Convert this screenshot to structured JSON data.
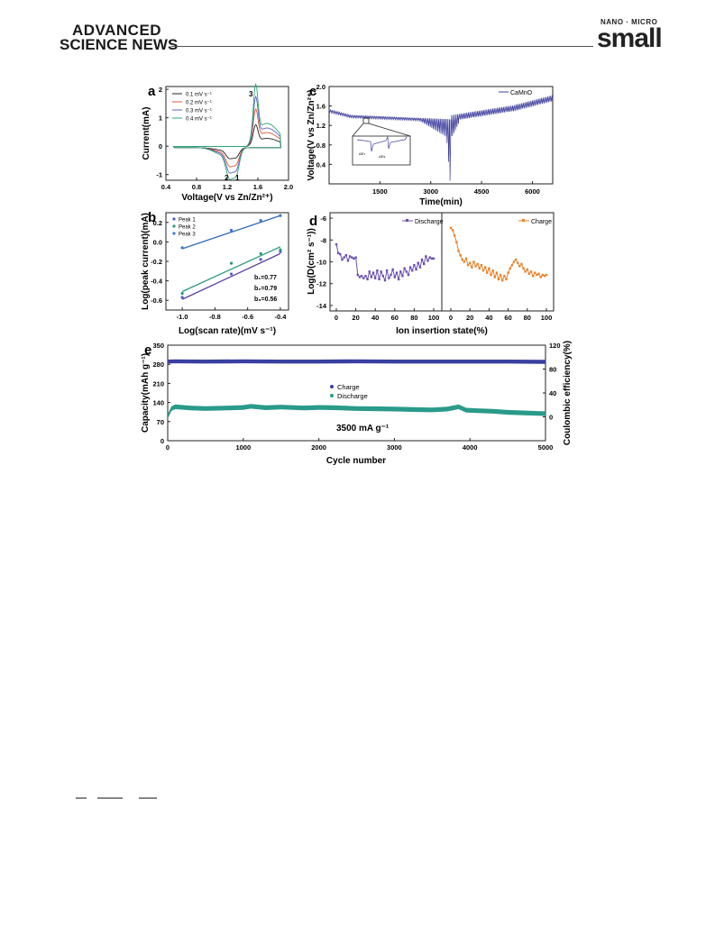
{
  "header": {
    "publisher_line1": "ADVANCED",
    "publisher_line2": "SCIENCE NEWS",
    "journal_tag": "NANO · MICRO",
    "journal_name": "small"
  },
  "chart_data": [
    {
      "panel": "a",
      "type": "line",
      "xlabel": "Voltage(V vs Zn/Zn²⁺)",
      "ylabel": "Current(mA)",
      "xlim": [
        0.4,
        2.0
      ],
      "ylim": [
        -1.2,
        2.1
      ],
      "xticks": [
        "0.4",
        "0.8",
        "1.2",
        "1.6",
        "2.0"
      ],
      "yticks": [
        "-1",
        "0",
        "1",
        "2"
      ],
      "legend": [
        "0.1 mV s⁻¹",
        "0.2 mV s⁻¹",
        "0.3 mV s⁻¹",
        "0.4 mV s⁻¹"
      ],
      "annotations": [
        "3",
        "2",
        "1"
      ],
      "colors": [
        "#222222",
        "#e0553a",
        "#5a5fc8",
        "#2aa876"
      ],
      "peaks": {
        "oxidation_x": 1.57,
        "reduction_x": [
          1.23,
          1.32
        ]
      },
      "scale": [
        0.35,
        0.6,
        0.8,
        1.0
      ]
    },
    {
      "panel": "b",
      "type": "scatter",
      "xlabel": "Log(scan rate)(mV s⁻¹)",
      "ylabel": "Log(peak current)(mA)",
      "xlim": [
        -1.1,
        -0.35
      ],
      "ylim": [
        -0.7,
        0.3
      ],
      "xticks": [
        "-1.0",
        "-0.8",
        "-0.6",
        "-0.4"
      ],
      "yticks": [
        "0.2",
        "0.0",
        "-0.2",
        "-0.4",
        "-0.6"
      ],
      "series": [
        {
          "name": "Peak 1",
          "color": "#4a5fc0",
          "x": [
            -1.0,
            -0.7,
            -0.52,
            -0.4
          ],
          "y": [
            -0.57,
            -0.33,
            -0.18,
            -0.1
          ]
        },
        {
          "name": "Peak 2",
          "color": "#2a9a7a",
          "x": [
            -1.0,
            -0.7,
            -0.52,
            -0.4
          ],
          "y": [
            -0.53,
            -0.22,
            -0.12,
            -0.08
          ]
        },
        {
          "name": "Peak 3",
          "color": "#3a78c8",
          "x": [
            -1.0,
            -0.7,
            -0.52,
            -0.4
          ],
          "y": [
            -0.06,
            0.12,
            0.22,
            0.27
          ]
        }
      ],
      "fits": [
        {
          "color": "#5a3fa0",
          "x": [
            -1.0,
            -0.4
          ],
          "y": [
            -0.59,
            -0.12
          ]
        },
        {
          "color": "#2a9a7a",
          "x": [
            -1.0,
            -0.4
          ],
          "y": [
            -0.51,
            -0.05
          ]
        },
        {
          "color": "#2f6ab8",
          "x": [
            -1.0,
            -0.4
          ],
          "y": [
            -0.07,
            0.27
          ]
        }
      ],
      "annotations": [
        "b₁=0.77",
        "b₂=0.79",
        "b₃=0.56"
      ]
    },
    {
      "panel": "c",
      "type": "line",
      "xlabel": "Time(min)",
      "ylabel": "Voltage(V vs Zn/Zn²⁺)",
      "xlim": [
        0,
        6600
      ],
      "ylim": [
        0,
        2.0
      ],
      "xticks": [
        "1500",
        "3000",
        "4500",
        "6000"
      ],
      "yticks": [
        "0.4",
        "0.8",
        "1.2",
        "1.6",
        "2.0"
      ],
      "legend": [
        "CaMnO"
      ],
      "color": "#3f3f9e",
      "inset_labels": [
        "ΔEτ",
        "ΔEs"
      ]
    },
    {
      "panel": "d",
      "type": "line",
      "xlabel": "Ion insertion state(%)",
      "ylabel": "Log(D(cm² s⁻¹))",
      "ylim": [
        -14.5,
        -5.5
      ],
      "yticks": [
        "-6",
        "-8",
        "-10",
        "-12",
        "-14"
      ],
      "xticks_left": [
        "0",
        "20",
        "40",
        "60",
        "80",
        "100"
      ],
      "xticks_right": [
        "0",
        "20",
        "40",
        "60",
        "80",
        "100"
      ],
      "series": [
        {
          "name": "Discharge",
          "color": "#6a4fb0",
          "x": [
            0,
            2,
            4,
            6,
            8,
            10,
            12,
            14,
            16,
            18,
            20,
            22,
            24,
            26,
            28,
            30,
            32,
            34,
            36,
            38,
            40,
            42,
            44,
            46,
            48,
            50,
            52,
            54,
            56,
            58,
            60,
            62,
            64,
            66,
            68,
            70,
            72,
            74,
            76,
            78,
            80,
            82,
            84,
            86,
            88,
            90,
            92,
            94,
            96,
            98,
            100
          ],
          "y": [
            -8.4,
            -9.2,
            -9.3,
            -9.8,
            -9.6,
            -9.4,
            -9.9,
            -9.5,
            -9.6,
            -9.7,
            -9.6,
            -11.2,
            -11.4,
            -11.3,
            -11.5,
            -11.3,
            -11.6,
            -10.9,
            -11.4,
            -11.0,
            -11.5,
            -10.8,
            -11.6,
            -10.9,
            -11.3,
            -11.7,
            -10.8,
            -11.5,
            -11.2,
            -10.7,
            -11.4,
            -11.0,
            -11.6,
            -10.9,
            -11.3,
            -10.6,
            -10.9,
            -11.2,
            -10.5,
            -10.8,
            -10.3,
            -10.7,
            -10.1,
            -10.5,
            -9.8,
            -10.2,
            -9.5,
            -9.9,
            -9.6,
            -9.7,
            -9.7
          ]
        },
        {
          "name": "Charge",
          "color": "#e8822a",
          "x": [
            0,
            2,
            4,
            6,
            8,
            10,
            12,
            14,
            16,
            18,
            20,
            22,
            24,
            26,
            28,
            30,
            32,
            34,
            36,
            38,
            40,
            42,
            44,
            46,
            48,
            50,
            52,
            54,
            56,
            58,
            60,
            62,
            64,
            66,
            68,
            70,
            72,
            74,
            76,
            78,
            80,
            82,
            84,
            86,
            88,
            90,
            92,
            94,
            96,
            98,
            100
          ],
          "y": [
            -6.9,
            -7.1,
            -7.6,
            -8.2,
            -9.0,
            -9.4,
            -9.8,
            -10.0,
            -9.7,
            -10.3,
            -10.1,
            -10.5,
            -10.0,
            -10.4,
            -10.2,
            -10.6,
            -10.3,
            -10.8,
            -10.5,
            -11.0,
            -10.6,
            -11.2,
            -10.8,
            -11.4,
            -11.0,
            -11.6,
            -11.2,
            -11.7,
            -11.3,
            -11.6,
            -11.0,
            -10.6,
            -10.3,
            -10.0,
            -9.8,
            -10.1,
            -10.4,
            -10.2,
            -10.6,
            -10.9,
            -10.7,
            -11.1,
            -10.9,
            -11.3,
            -11.0,
            -11.2,
            -11.1,
            -11.4,
            -11.2,
            -11.3,
            -11.2
          ]
        }
      ]
    },
    {
      "panel": "e",
      "type": "scatter",
      "xlabel": "Cycle number",
      "ylabel": "Capacity(mAh g⁻¹)",
      "ylabel_right": "Coulombic efficiency(%)",
      "xlim": [
        0,
        5000
      ],
      "ylim": [
        0,
        350
      ],
      "ylim_right": [
        -40,
        120
      ],
      "xticks": [
        "0",
        "1000",
        "2000",
        "3000",
        "4000",
        "5000"
      ],
      "yticks": [
        "0",
        "70",
        "140",
        "210",
        "280",
        "350"
      ],
      "yticks_right": [
        "0",
        "40",
        "80",
        "120"
      ],
      "annotation": "3500 mA g⁻¹",
      "series": [
        {
          "name": "Charge",
          "color": "#3a3fa0",
          "x": [
            0,
            100,
            500,
            1000,
            1500,
            2000,
            2500,
            3000,
            3500,
            4000,
            4500,
            5000
          ],
          "y": [
            290,
            291,
            290,
            291,
            290,
            290,
            291,
            290,
            290,
            290,
            290,
            289
          ]
        },
        {
          "name": "Discharge",
          "color": "#2a9a8a",
          "x": [
            0,
            50,
            100,
            300,
            500,
            800,
            1000,
            1100,
            1300,
            1500,
            1800,
            2000,
            2200,
            2500,
            2800,
            3000,
            3300,
            3500,
            3700,
            3850,
            3950,
            4100,
            4300,
            4500,
            4700,
            4900,
            5000
          ],
          "y": [
            88,
            118,
            124,
            120,
            118,
            120,
            122,
            126,
            121,
            123,
            120,
            122,
            121,
            118,
            117,
            116,
            114,
            113,
            116,
            124,
            112,
            110,
            108,
            104,
            102,
            100,
            99
          ]
        }
      ]
    }
  ],
  "labels": {
    "a": {
      "letter": "a",
      "xlabel": "Voltage(V vs Zn/Zn²⁺)",
      "ylabel": "Current(mA)",
      "leg": [
        "0.1 mV s⁻¹",
        "0.2 mV s⁻¹",
        "0.3 mV s⁻¹",
        "0.4 mV s⁻¹"
      ],
      "p3": "3",
      "p2": "2",
      "p1": "1"
    },
    "b": {
      "letter": "b",
      "xlabel": "Log(scan rate)(mV s⁻¹)",
      "ylabel": "Log(peak current)(mA)",
      "leg": [
        "Peak 1",
        "Peak 2",
        "Peak 3"
      ],
      "b1": "b₁=0.77",
      "b2": "b₂=0.79",
      "b3": "b₃=0.56"
    },
    "c": {
      "letter": "c",
      "xlabel": "Time(min)",
      "ylabel": "Voltage(V vs Zn/Zn²⁺)",
      "leg": "CaMnO",
      "dEt": "ΔEτ",
      "dEs": "ΔEs"
    },
    "d": {
      "letter": "d",
      "xlabel": "Ion insertion state(%)",
      "ylabel": "Log(D(cm² s⁻¹))",
      "leg1": "Discharge",
      "leg2": "Charge"
    },
    "e": {
      "letter": "e",
      "xlabel": "Cycle number",
      "ylabel": "Capacity(mAh g⁻¹)",
      "ylabel2": "Coulombic efficiency(%)",
      "leg1": "Charge",
      "leg2": "Discharge",
      "rate": "3500 mA g⁻¹"
    }
  }
}
